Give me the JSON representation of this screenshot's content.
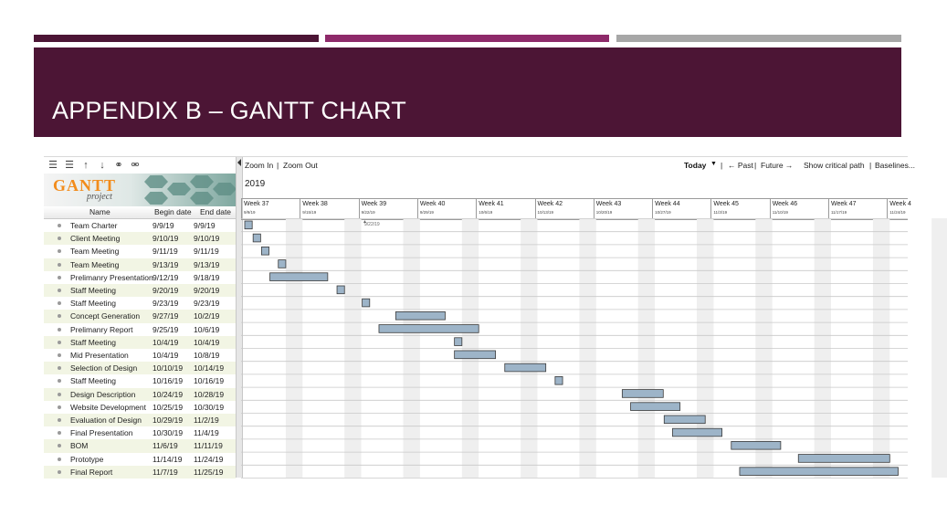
{
  "slide": {
    "title": "APPENDIX B – GANTT CHART",
    "banner_color": "#4c1535",
    "stripe_colors": [
      "#4c1535",
      "#8e2a6a",
      "#a7a7a7"
    ]
  },
  "app": {
    "toolbar_icons": [
      "indent-icon",
      "outdent-icon",
      "move-up-icon",
      "move-down-icon",
      "link-icon",
      "unlink-icon"
    ],
    "logo_text": "GANTT",
    "logo_subtext": "project",
    "columns": {
      "name": "Name",
      "begin": "Begin date",
      "end": "End date"
    },
    "controls": {
      "zoom_in": "Zoom In",
      "zoom_out": "Zoom Out",
      "separator": "|",
      "today": "Today",
      "past": "← Past",
      "future": "Future →",
      "critical_path": "Show critical path",
      "baselines": "Baselines..."
    },
    "year": "2019",
    "today_marker": "9/22/19",
    "bar_color": "#9db4c8"
  },
  "weeks": [
    {
      "label": "Week 37",
      "date": "9/9/19"
    },
    {
      "label": "Week 38",
      "date": "9/15/19"
    },
    {
      "label": "Week 39",
      "date": "9/22/19"
    },
    {
      "label": "Week 40",
      "date": "9/29/19"
    },
    {
      "label": "Week 41",
      "date": "10/6/19"
    },
    {
      "label": "Week 42",
      "date": "10/13/19"
    },
    {
      "label": "Week 43",
      "date": "10/20/19"
    },
    {
      "label": "Week 44",
      "date": "10/27/19"
    },
    {
      "label": "Week 45",
      "date": "11/3/19"
    },
    {
      "label": "Week 46",
      "date": "11/10/19"
    },
    {
      "label": "Week 47",
      "date": "11/17/19"
    },
    {
      "label": "Week 4",
      "date": "11/24/19"
    }
  ],
  "tasks": [
    {
      "name": "Team Charter",
      "begin": "9/9/19",
      "end": "9/9/19"
    },
    {
      "name": "Client Meeting",
      "begin": "9/10/19",
      "end": "9/10/19"
    },
    {
      "name": "Team Meeting",
      "begin": "9/11/19",
      "end": "9/11/19"
    },
    {
      "name": "Team Meeting",
      "begin": "9/13/19",
      "end": "9/13/19"
    },
    {
      "name": "Prelimanry Presentation",
      "begin": "9/12/19",
      "end": "9/18/19"
    },
    {
      "name": "Staff Meeting",
      "begin": "9/20/19",
      "end": "9/20/19"
    },
    {
      "name": "Staff Meeting",
      "begin": "9/23/19",
      "end": "9/23/19"
    },
    {
      "name": "Concept Generation",
      "begin": "9/27/19",
      "end": "10/2/19"
    },
    {
      "name": "Prelimanry Report",
      "begin": "9/25/19",
      "end": "10/6/19"
    },
    {
      "name": "Staff Meeting",
      "begin": "10/4/19",
      "end": "10/4/19"
    },
    {
      "name": "Mid Presentation",
      "begin": "10/4/19",
      "end": "10/8/19"
    },
    {
      "name": "Selection of Design",
      "begin": "10/10/19",
      "end": "10/14/19"
    },
    {
      "name": "Staff Meeting",
      "begin": "10/16/19",
      "end": "10/16/19"
    },
    {
      "name": "Design Description",
      "begin": "10/24/19",
      "end": "10/28/19"
    },
    {
      "name": "Website Development",
      "begin": "10/25/19",
      "end": "10/30/19"
    },
    {
      "name": "Evaluation of Design",
      "begin": "10/29/19",
      "end": "11/2/19"
    },
    {
      "name": "Final Presentation",
      "begin": "10/30/19",
      "end": "11/4/19"
    },
    {
      "name": "BOM",
      "begin": "11/6/19",
      "end": "11/11/19"
    },
    {
      "name": "Prototype",
      "begin": "11/14/19",
      "end": "11/24/19"
    },
    {
      "name": "Final Report",
      "begin": "11/7/19",
      "end": "11/25/19"
    }
  ]
}
